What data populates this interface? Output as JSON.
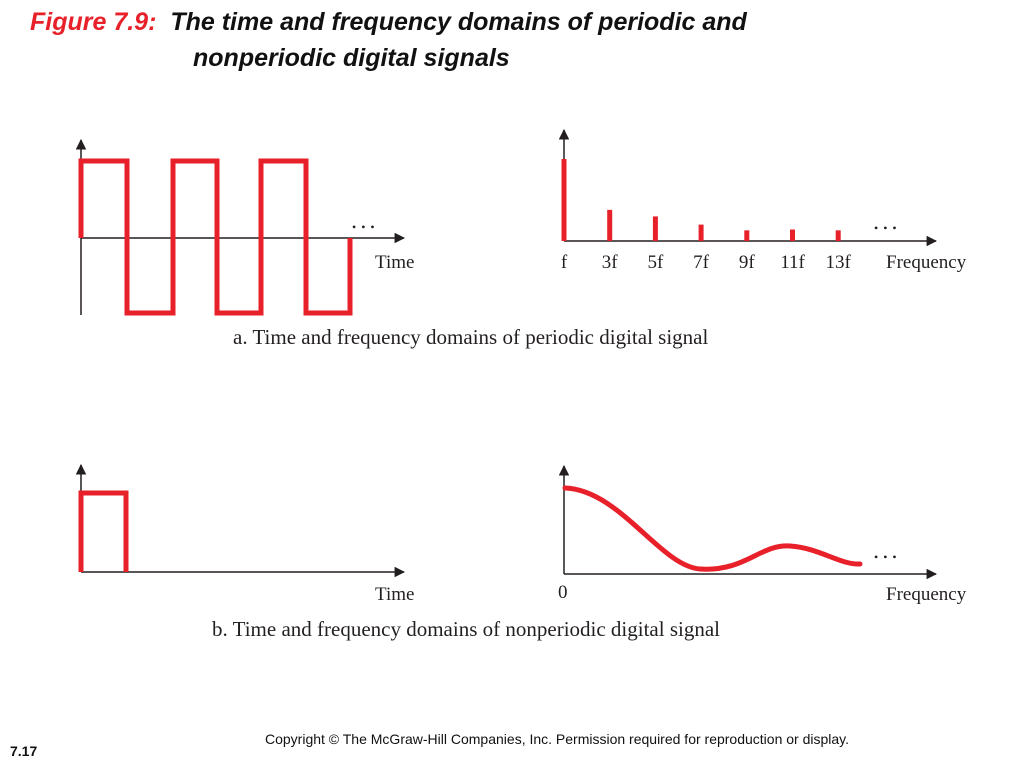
{
  "slide": {
    "figure_label": "Figure 7.9:",
    "title_line1": "The time and frequency domains of periodic and",
    "title_line2": "nonperiodic digital signals",
    "copyright": "Copyright © The McGraw-Hill Companies, Inc. Permission required for reproduction or display.",
    "slide_number": "7.17"
  },
  "colors": {
    "signal": "#e8202a",
    "axis": "#231f20"
  },
  "panel_a": {
    "caption": "a. Time and frequency domains of periodic digital signal",
    "time_label": "Time",
    "frequency_label": "Frequency",
    "ellipsis": "• • •",
    "harmonic_labels": [
      "f",
      "3f",
      "5f",
      "7f",
      "9f",
      "11f",
      "13f"
    ],
    "harmonic_amplitudes": [
      1.0,
      0.38,
      0.3,
      0.2,
      0.13,
      0.14,
      0.13
    ]
  },
  "panel_b": {
    "caption": "b. Time and frequency domains of nonperiodic digital signal",
    "time_label": "Time",
    "frequency_label": "Frequency",
    "origin_label": "0",
    "ellipsis": "• • •"
  }
}
